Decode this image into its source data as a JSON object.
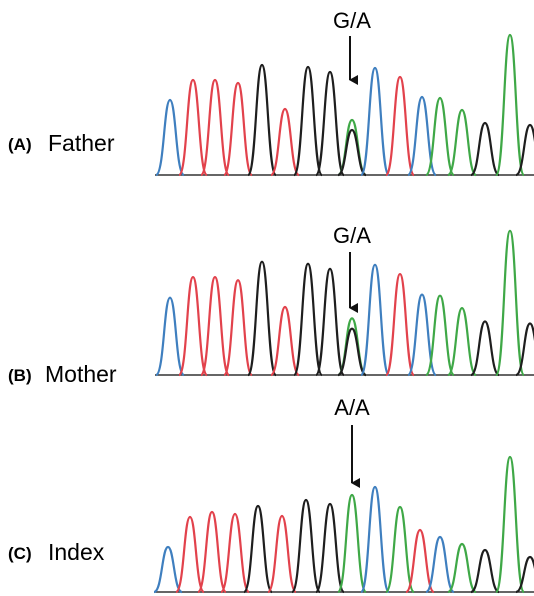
{
  "panels": [
    {
      "letter": "(A)",
      "name": "Father",
      "genotype": "G/A"
    },
    {
      "letter": "(B)",
      "name": "Mother",
      "genotype": "G/A"
    },
    {
      "letter": "(C)",
      "name": "Index",
      "genotype": "A/A"
    }
  ]
}
